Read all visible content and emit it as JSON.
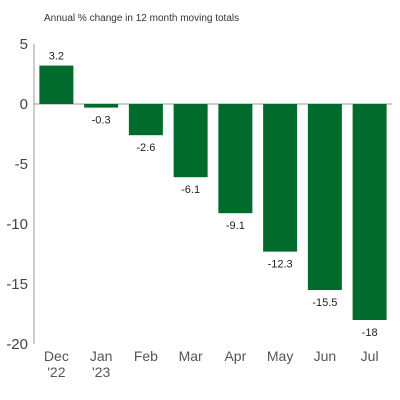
{
  "chart_data": {
    "type": "bar",
    "subtitle": "Annual % change in 12 month moving totals",
    "categories": [
      [
        "Dec",
        "'22"
      ],
      [
        "Jan",
        "'23"
      ],
      [
        "Feb"
      ],
      [
        "Mar"
      ],
      [
        "Apr"
      ],
      [
        "May"
      ],
      [
        "Jun"
      ],
      [
        "Jul"
      ]
    ],
    "values": [
      3.2,
      -0.3,
      -2.6,
      -6.1,
      -9.1,
      -12.3,
      -15.5,
      -18
    ],
    "value_labels": [
      "3.2",
      "-0.3",
      "-2.6",
      "-6.1",
      "-9.1",
      "-12.3",
      "-15.5",
      "-18"
    ],
    "ylim": [
      -20,
      5
    ],
    "yticks": [
      5,
      0,
      -5,
      -10,
      -15,
      -20
    ],
    "ytick_labels": [
      "5",
      "0",
      "-5",
      "-10",
      "-15",
      "-20"
    ],
    "grid": false,
    "colors": {
      "bar": "#006b2d",
      "axis": "#999999"
    }
  }
}
